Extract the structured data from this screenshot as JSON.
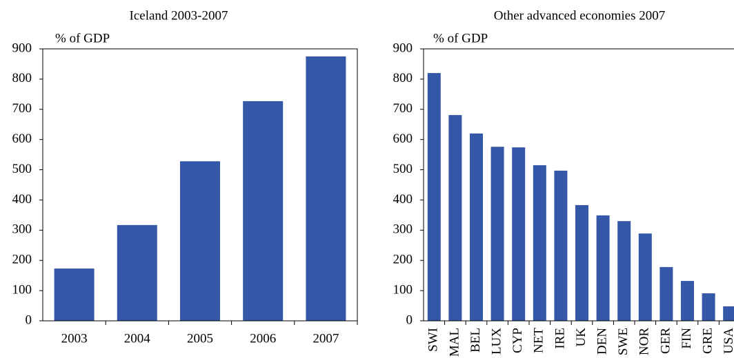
{
  "chart_data": [
    {
      "type": "bar",
      "title": "Iceland 2003-2007",
      "y_label": "% of GDP",
      "categories": [
        "2003",
        "2004",
        "2005",
        "2006",
        "2007"
      ],
      "values": [
        173,
        317,
        528,
        727,
        875
      ],
      "color": "#3557a7",
      "ylim": [
        0,
        900
      ],
      "yticks": [
        0,
        100,
        200,
        300,
        400,
        500,
        600,
        700,
        800,
        900
      ],
      "rotate_labels": false
    },
    {
      "type": "bar",
      "title": "Other advanced economies 2007",
      "y_label": "% of GDP",
      "categories": [
        "SWI",
        "MAL",
        "BEL",
        "LUX",
        "CYP",
        "NET",
        "IRE",
        "UK",
        "DEN",
        "SWE",
        "NOR",
        "GER",
        "FIN",
        "GRE",
        "USA"
      ],
      "values": [
        820,
        681,
        620,
        576,
        574,
        515,
        497,
        383,
        349,
        330,
        289,
        178,
        132,
        91,
        48
      ],
      "color": "#3557a7",
      "ylim": [
        0,
        900
      ],
      "yticks": [
        0,
        100,
        200,
        300,
        400,
        500,
        600,
        700,
        800,
        900
      ],
      "rotate_labels": true
    }
  ]
}
